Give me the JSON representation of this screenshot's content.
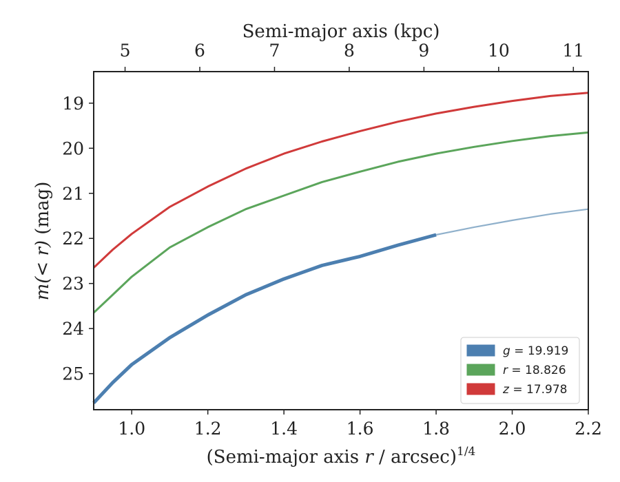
{
  "chart_data": {
    "type": "line",
    "x_axis": {
      "label_main": "(Semi-major axis ",
      "label_var": "r",
      "label_rest": " / arcsec)",
      "label_sup": "1/4",
      "lim": [
        0.9,
        2.2
      ],
      "ticks": [
        1.0,
        1.2,
        1.4,
        1.6,
        1.8,
        2.0,
        2.2
      ],
      "tick_labels": [
        "1.0",
        "1.2",
        "1.4",
        "1.6",
        "1.8",
        "2.0",
        "2.2"
      ]
    },
    "y_axis": {
      "label_var": "m(< r)",
      "label_unit": " (mag)",
      "lim": [
        18.3,
        25.8
      ],
      "inverted": true,
      "ticks": [
        19,
        20,
        21,
        22,
        23,
        24,
        25
      ],
      "tick_labels": [
        "19",
        "20",
        "21",
        "22",
        "23",
        "24",
        "25"
      ]
    },
    "top_axis": {
      "label": "Semi-major axis (kpc)",
      "lim_kpc": [
        4.58,
        11.2
      ],
      "ticks": [
        5,
        6,
        7,
        8,
        9,
        10,
        11
      ],
      "tick_labels": [
        "5",
        "6",
        "7",
        "8",
        "9",
        "10",
        "11"
      ]
    },
    "legend": {
      "placement": "lower-right",
      "entries": [
        {
          "label": "g = 19.919",
          "color": "#4c7fb0"
        },
        {
          "label": "r = 18.826",
          "color": "#5ba55b"
        },
        {
          "label": "z = 17.978",
          "color": "#d03a3a"
        }
      ]
    },
    "series": [
      {
        "name": "g = 19.919",
        "color": "#4c7fb0",
        "x": [
          0.9,
          0.95,
          1.0,
          1.1,
          1.2,
          1.3,
          1.4,
          1.45,
          1.5,
          1.6,
          1.7,
          1.8
        ],
        "y": [
          25.65,
          25.2,
          24.8,
          24.2,
          23.7,
          23.25,
          22.9,
          22.75,
          22.6,
          22.4,
          22.15,
          21.92
        ]
      },
      {
        "name": "g extrapolation",
        "color": "#8fb0cb",
        "x": [
          1.8,
          1.9,
          2.0,
          2.1,
          2.2
        ],
        "y": [
          21.92,
          21.75,
          21.6,
          21.46,
          21.35
        ]
      },
      {
        "name": "r = 18.826",
        "color": "#5ba55b",
        "x": [
          0.9,
          0.95,
          1.0,
          1.1,
          1.2,
          1.3,
          1.4,
          1.5,
          1.6,
          1.7,
          1.8,
          1.9,
          2.0,
          2.1,
          2.2
        ],
        "y": [
          23.65,
          23.25,
          22.85,
          22.2,
          21.75,
          21.35,
          21.05,
          20.75,
          20.52,
          20.3,
          20.12,
          19.97,
          19.84,
          19.73,
          19.65
        ]
      },
      {
        "name": "z = 17.978",
        "color": "#d03a3a",
        "x": [
          0.9,
          0.95,
          1.0,
          1.1,
          1.2,
          1.3,
          1.4,
          1.5,
          1.6,
          1.7,
          1.8,
          1.9,
          2.0,
          2.1,
          2.2
        ],
        "y": [
          22.65,
          22.25,
          21.9,
          21.3,
          20.85,
          20.45,
          20.12,
          19.85,
          19.62,
          19.41,
          19.23,
          19.08,
          18.95,
          18.84,
          18.77
        ]
      }
    ]
  }
}
